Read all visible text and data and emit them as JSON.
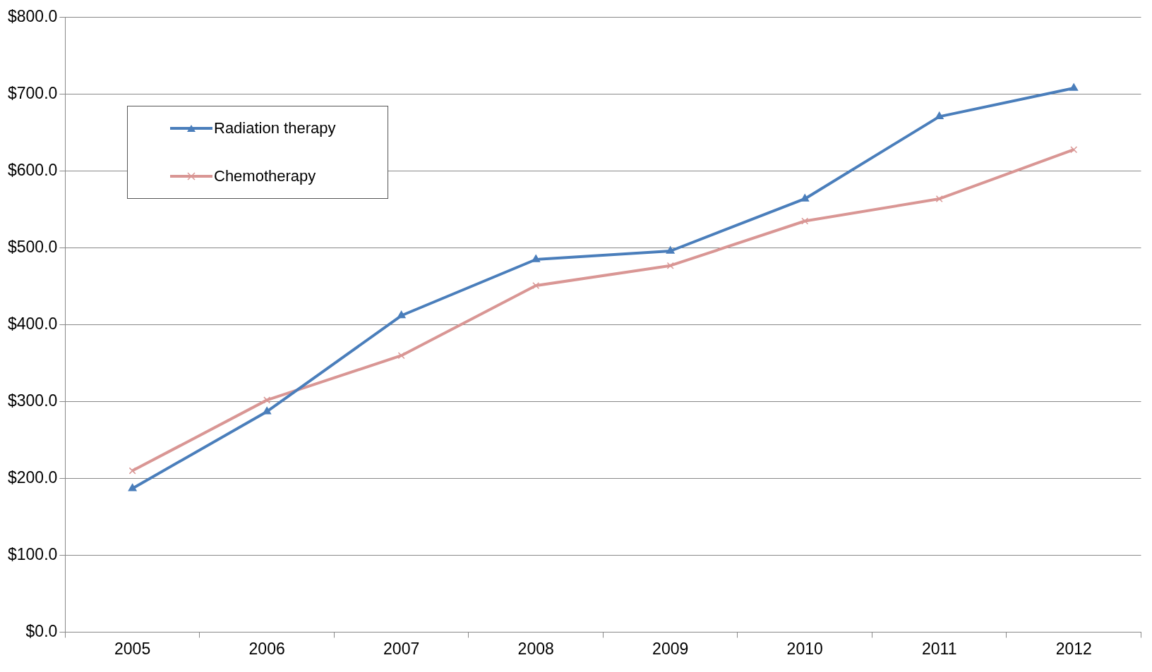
{
  "chart_data": {
    "type": "line",
    "categories": [
      "2005",
      "2006",
      "2007",
      "2008",
      "2009",
      "2010",
      "2011",
      "2012"
    ],
    "series": [
      {
        "name": "Radiation therapy",
        "color": "#4a7ebb",
        "marker": "triangle",
        "values": [
          187,
          287,
          412,
          485,
          496,
          564,
          671,
          708
        ]
      },
      {
        "name": "Chemotherapy",
        "color": "#d99694",
        "marker": "cross",
        "values": [
          210,
          302,
          360,
          451,
          477,
          535,
          564,
          628
        ]
      }
    ],
    "ylim": [
      0,
      800
    ],
    "yticks": [
      {
        "value": 0,
        "label": "$0.0"
      },
      {
        "value": 100,
        "label": "$100.0"
      },
      {
        "value": 200,
        "label": "$200.0"
      },
      {
        "value": 300,
        "label": "$300.0"
      },
      {
        "value": 400,
        "label": "$400.0"
      },
      {
        "value": 500,
        "label": "$500.0"
      },
      {
        "value": 600,
        "label": "$600.0"
      },
      {
        "value": 700,
        "label": "$700.0"
      },
      {
        "value": 800,
        "label": "$800.0"
      }
    ],
    "grid": "y",
    "legend": "top left",
    "line_style": "solid"
  }
}
